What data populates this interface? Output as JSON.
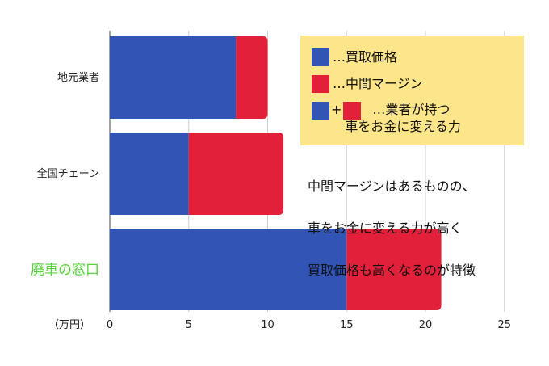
{
  "chart_data": {
    "type": "bar",
    "orientation": "horizontal",
    "stacked": true,
    "categories": [
      "地元業者",
      "全国チェーン",
      "廃車の窓口"
    ],
    "highlight_category": "廃車の窓口",
    "series": [
      {
        "name": "買取価格",
        "values": [
          8,
          5,
          15
        ]
      },
      {
        "name": "中間マージン",
        "values": [
          2,
          6,
          6
        ]
      }
    ],
    "unit_label": "（万円）",
    "xlim": [
      0,
      25
    ],
    "xticks": [
      0,
      5,
      10,
      15,
      20,
      25
    ],
    "grid": true,
    "legend_position": "top-right",
    "colors": {
      "price": "#3254b4",
      "margin": "#e3203a",
      "highlight_label": "#55d43b",
      "legend_bg": "#fde58a"
    }
  },
  "legend": {
    "item1": "…買取価格",
    "item2": "…中間マージン",
    "plus": "+",
    "item3_line1": "…業者が持つ",
    "item3_line2": "車をお金に変える力"
  },
  "annotation": {
    "line1": "中間マージンはあるものの、",
    "line2": "車をお金に変える力が高く",
    "line3": "買取価格も高くなるのが特徴"
  }
}
